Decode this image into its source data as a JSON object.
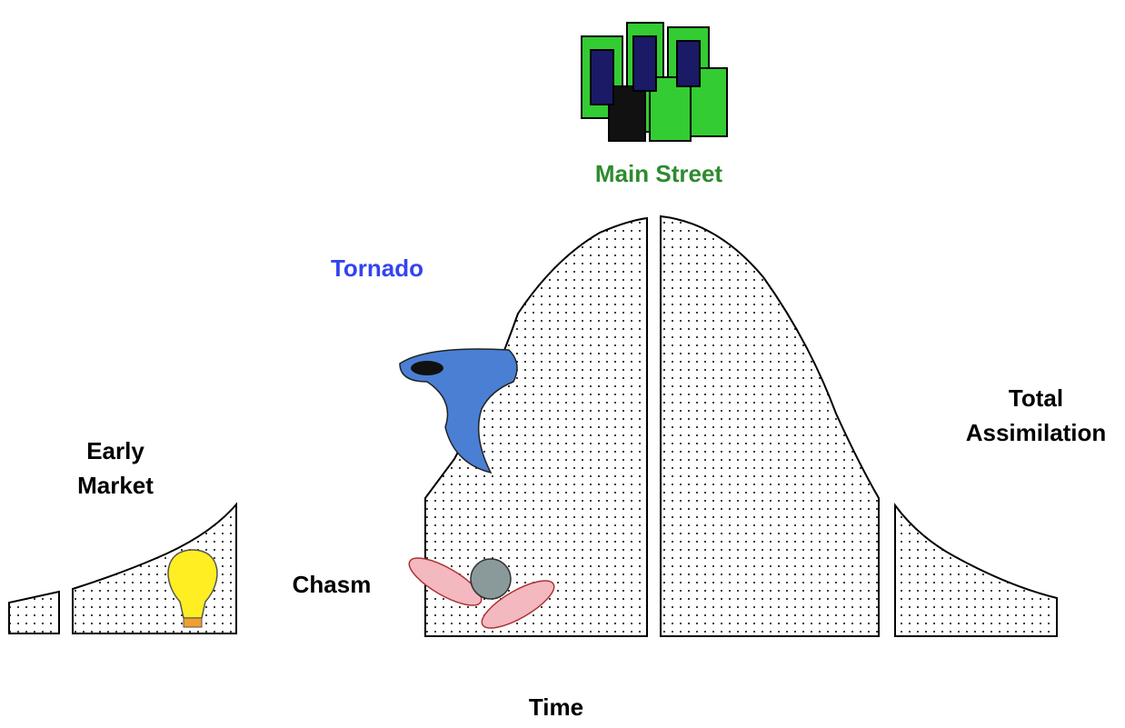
{
  "labels": {
    "main_street": "Main Street",
    "tornado": "Tornado",
    "total_assimilation": [
      "Total",
      "Assimilation"
    ],
    "early_market": [
      "Early",
      "Market"
    ],
    "chasm": "Chasm",
    "time": "Time"
  }
}
